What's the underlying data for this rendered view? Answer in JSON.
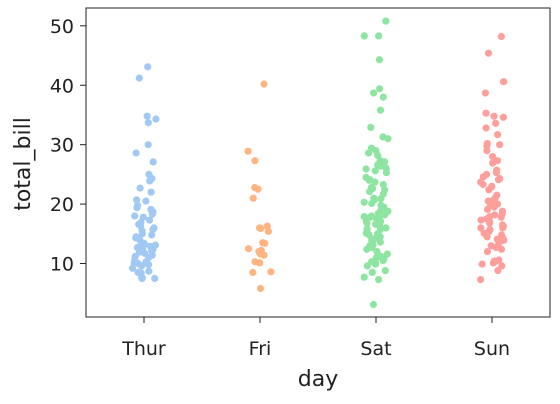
{
  "chart_data": {
    "type": "scatter",
    "subtype": "stripplot",
    "xlabel": "day",
    "ylabel": "total_bill",
    "categories": [
      "Thur",
      "Fri",
      "Sat",
      "Sun"
    ],
    "ylim": [
      1,
      53
    ],
    "yticks": [
      10,
      20,
      30,
      40,
      50
    ],
    "grid": false,
    "legend": "none",
    "colors": [
      "#a1c9f4",
      "#ffb482",
      "#8de5a1",
      "#ff9f9b"
    ],
    "series": [
      {
        "category": "Thur",
        "values": [
          43.1,
          41.2,
          34.8,
          34.3,
          33.7,
          30.0,
          28.6,
          27.1,
          25.0,
          24.3,
          23.9,
          22.7,
          22.0,
          20.7,
          20.5,
          19.8,
          19.4,
          19.1,
          18.7,
          18.3,
          18.0,
          17.8,
          17.3,
          16.9,
          16.6,
          16.3,
          16.0,
          15.7,
          15.5,
          15.0,
          14.8,
          14.5,
          14.3,
          14.0,
          13.6,
          13.4,
          13.1,
          13.0,
          12.9,
          12.7,
          12.6,
          12.4,
          12.2,
          11.9,
          11.7,
          11.4,
          11.0,
          10.7,
          10.3,
          10.1,
          9.8,
          9.6,
          8.7,
          8.5,
          8.4,
          7.6,
          7.5,
          7.5,
          7.6,
          9.2,
          10.0,
          11.2
        ]
      },
      {
        "category": "Fri",
        "values": [
          40.2,
          28.9,
          27.3,
          22.8,
          22.5,
          21.0,
          16.3,
          16.0,
          15.9,
          15.4,
          13.5,
          13.4,
          12.5,
          12.2,
          12.0,
          11.6,
          11.4,
          10.3,
          10.1,
          8.6,
          8.5,
          5.8
        ]
      },
      {
        "category": "Sat",
        "values": [
          50.8,
          48.3,
          48.3,
          44.3,
          39.4,
          38.7,
          38.0,
          35.8,
          32.9,
          31.3,
          31.0,
          29.0,
          28.6,
          28.2,
          27.3,
          27.1,
          26.6,
          26.4,
          25.9,
          25.3,
          24.5,
          24.1,
          23.7,
          23.3,
          22.8,
          22.4,
          22.1,
          21.7,
          21.0,
          20.7,
          20.3,
          20.1,
          19.8,
          19.5,
          19.2,
          18.8,
          18.4,
          18.2,
          18.0,
          17.9,
          17.8,
          17.5,
          17.3,
          17.1,
          16.9,
          16.6,
          16.3,
          16.0,
          15.7,
          15.4,
          15.0,
          14.8,
          14.5,
          14.2,
          13.9,
          13.6,
          13.4,
          13.1,
          13.0,
          12.7,
          12.4,
          12.0,
          11.6,
          11.2,
          11.0,
          10.8,
          10.5,
          10.3,
          10.1,
          9.9,
          9.6,
          8.8,
          8.5,
          7.7,
          7.3,
          3.1,
          15.1,
          15.8,
          16.8,
          17.6,
          18.3,
          19.0,
          20.9,
          22.6,
          24.0,
          25.6,
          26.0,
          29.4,
          17.1
        ]
      },
      {
        "category": "Sun",
        "values": [
          48.2,
          45.4,
          40.6,
          38.7,
          35.3,
          34.8,
          34.6,
          32.8,
          31.7,
          30.2,
          30.0,
          29.8,
          28.0,
          27.3,
          26.9,
          25.7,
          25.3,
          25.0,
          24.6,
          24.1,
          23.7,
          23.3,
          23.0,
          22.8,
          22.4,
          21.5,
          21.0,
          20.7,
          20.5,
          20.3,
          19.8,
          19.5,
          19.1,
          18.8,
          18.4,
          18.2,
          17.9,
          17.8,
          17.5,
          17.3,
          17.0,
          16.8,
          16.5,
          16.3,
          16.0,
          15.7,
          15.4,
          15.1,
          14.8,
          14.5,
          14.3,
          14.1,
          13.9,
          13.4,
          13.0,
          12.7,
          12.4,
          12.0,
          10.6,
          10.4,
          10.3,
          10.1,
          9.9,
          9.6,
          8.8,
          7.3,
          33.6,
          29.0,
          24.3,
          20.0,
          16.0
        ]
      }
    ]
  }
}
